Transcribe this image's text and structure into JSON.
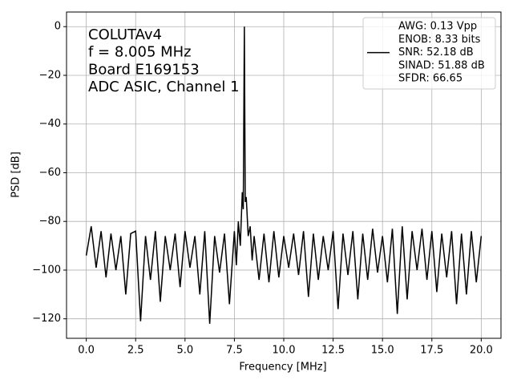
{
  "chart_data": {
    "type": "line",
    "xlabel": "Frequency [MHz]",
    "ylabel": "PSD [dB]",
    "annotation": [
      "COLUTAv4",
      "f = 8.005 MHz",
      "Board E169153",
      "ADC ASIC, Channel  1"
    ],
    "legend": {
      "corner": "upper right",
      "lines": [
        "AWG: 0.13 Vpp",
        "ENOB: 8.33 bits",
        "SNR: 52.18 dB",
        "SINAD: 51.88 dB",
        "SFDR: 66.65"
      ]
    },
    "grid": true,
    "xlim": [
      -1.0,
      21.0
    ],
    "ylim": [
      -128,
      6
    ],
    "xticks": [
      {
        "value": 0,
        "label": "0.0"
      },
      {
        "value": 2.5,
        "label": "2.5"
      },
      {
        "value": 5,
        "label": "5.0"
      },
      {
        "value": 7.5,
        "label": "7.5"
      },
      {
        "value": 10,
        "label": "10.0"
      },
      {
        "value": 12.5,
        "label": "12.5"
      },
      {
        "value": 15,
        "label": "15.0"
      },
      {
        "value": 17.5,
        "label": "17.5"
      },
      {
        "value": 20,
        "label": "20.0"
      }
    ],
    "yticks": [
      0,
      {
        "value": -20,
        "label": "−20"
      },
      {
        "value": -40,
        "label": "−40"
      },
      {
        "value": -60,
        "label": "−60"
      },
      {
        "value": -80,
        "label": "−80"
      },
      {
        "value": -100,
        "label": "−100"
      },
      {
        "value": -120,
        "label": "−120"
      }
    ],
    "x": [
      0,
      0.25,
      0.5,
      0.75,
      1,
      1.25,
      1.5,
      1.75,
      2,
      2.25,
      2.5,
      2.75,
      3,
      3.25,
      3.5,
      3.75,
      4,
      4.25,
      4.5,
      4.75,
      5,
      5.25,
      5.5,
      5.75,
      6,
      6.25,
      6.5,
      6.75,
      7,
      7.25,
      7.5,
      7.6,
      7.7,
      7.8,
      7.9,
      7.95,
      8.005,
      8.05,
      8.1,
      8.2,
      8.3,
      8.4,
      8.5,
      8.75,
      9,
      9.25,
      9.5,
      9.75,
      10,
      10.25,
      10.5,
      10.75,
      11,
      11.25,
      11.5,
      11.75,
      12,
      12.25,
      12.5,
      12.75,
      13,
      13.25,
      13.5,
      13.75,
      14,
      14.25,
      14.5,
      14.75,
      15,
      15.25,
      15.5,
      15.75,
      16,
      16.25,
      16.5,
      16.75,
      17,
      17.25,
      17.5,
      17.75,
      18,
      18.25,
      18.5,
      18.75,
      19,
      19.25,
      19.5,
      19.75,
      20
    ],
    "series": [
      {
        "color": "#000000",
        "values": [
          -94,
          -82,
          -99,
          -84,
          -103,
          -85,
          -100,
          -86,
          -110,
          -85,
          -84,
          -121,
          -86,
          -104,
          -84,
          -113,
          -86,
          -100,
          -85,
          -107,
          -84,
          -99,
          -86,
          -110,
          -84,
          -122,
          -86,
          -101,
          -85,
          -114,
          -84,
          -98,
          -80,
          -90,
          -68,
          -75,
          0,
          -72,
          -70,
          -86,
          -82,
          -96,
          -86,
          -104,
          -85,
          -105,
          -84,
          -103,
          -86,
          -99,
          -85,
          -102,
          -84,
          -111,
          -85,
          -104,
          -86,
          -100,
          -84,
          -116,
          -85,
          -102,
          -84,
          -112,
          -85,
          -104,
          -83,
          -101,
          -86,
          -105,
          -83,
          -118,
          -82,
          -112,
          -84,
          -100,
          -83,
          -104,
          -84,
          -109,
          -85,
          -103,
          -84,
          -114,
          -85,
          -110,
          -84,
          -105,
          -86
        ]
      }
    ]
  }
}
